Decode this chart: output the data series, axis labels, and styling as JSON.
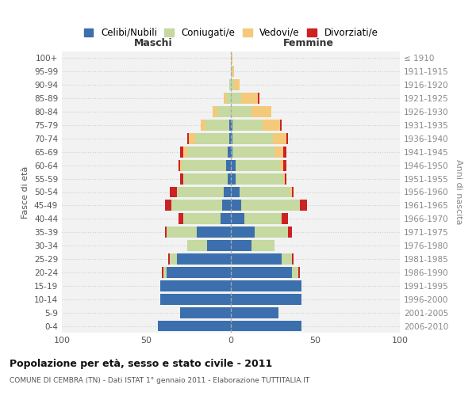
{
  "age_groups": [
    "100+",
    "95-99",
    "90-94",
    "85-89",
    "80-84",
    "75-79",
    "70-74",
    "65-69",
    "60-64",
    "55-59",
    "50-54",
    "45-49",
    "40-44",
    "35-39",
    "30-34",
    "25-29",
    "20-24",
    "15-19",
    "10-14",
    "5-9",
    "0-4"
  ],
  "birth_years": [
    "≤ 1910",
    "1911-1915",
    "1916-1920",
    "1921-1925",
    "1926-1930",
    "1931-1935",
    "1936-1940",
    "1941-1945",
    "1946-1950",
    "1951-1955",
    "1956-1960",
    "1961-1965",
    "1966-1970",
    "1971-1975",
    "1976-1980",
    "1981-1985",
    "1986-1990",
    "1991-1995",
    "1996-2000",
    "2001-2005",
    "2006-2010"
  ],
  "males": {
    "celibe": [
      0,
      0,
      0,
      0,
      0,
      1,
      1,
      2,
      3,
      2,
      4,
      5,
      6,
      20,
      14,
      32,
      38,
      42,
      42,
      30,
      43
    ],
    "coniugato": [
      0,
      0,
      1,
      3,
      8,
      14,
      20,
      24,
      26,
      26,
      28,
      30,
      22,
      18,
      12,
      4,
      2,
      0,
      0,
      0,
      0
    ],
    "vedovo": [
      0,
      0,
      0,
      1,
      3,
      3,
      4,
      2,
      1,
      0,
      0,
      0,
      0,
      0,
      0,
      0,
      0,
      0,
      0,
      0,
      0
    ],
    "divorziato": [
      0,
      0,
      0,
      0,
      0,
      0,
      1,
      2,
      1,
      2,
      4,
      4,
      3,
      1,
      0,
      1,
      1,
      0,
      0,
      0,
      0
    ]
  },
  "females": {
    "nubile": [
      0,
      0,
      0,
      0,
      0,
      1,
      1,
      1,
      3,
      3,
      5,
      6,
      8,
      14,
      12,
      30,
      36,
      42,
      42,
      28,
      42
    ],
    "coniugata": [
      0,
      1,
      2,
      6,
      12,
      18,
      24,
      25,
      26,
      28,
      30,
      35,
      22,
      20,
      14,
      6,
      4,
      0,
      0,
      0,
      0
    ],
    "vedova": [
      1,
      1,
      3,
      10,
      12,
      10,
      8,
      5,
      2,
      1,
      1,
      0,
      0,
      0,
      0,
      0,
      0,
      0,
      0,
      0,
      0
    ],
    "divorziata": [
      0,
      0,
      0,
      1,
      0,
      1,
      1,
      2,
      2,
      1,
      1,
      4,
      4,
      2,
      0,
      1,
      1,
      0,
      0,
      0,
      0
    ]
  },
  "colors": {
    "celibe": "#3c6fad",
    "coniugato": "#c5d9a0",
    "vedovo": "#f5c97a",
    "divorziato": "#cc2222"
  },
  "xlim": 100,
  "title": "Popolazione per età, sesso e stato civile - 2011",
  "subtitle": "COMUNE DI CEMBRA (TN) - Dati ISTAT 1° gennaio 2011 - Elaborazione TUTTITALIA.IT",
  "xlabel_left": "Maschi",
  "xlabel_right": "Femmine",
  "ylabel_left": "Fasce di età",
  "ylabel_right": "Anni di nascita",
  "legend_labels": [
    "Celibi/Nubili",
    "Coniugati/e",
    "Vedovi/e",
    "Divorziati/e"
  ],
  "bg_color": "#ffffff",
  "plot_bg": "#f2f2f2",
  "grid_color": "#cccccc"
}
